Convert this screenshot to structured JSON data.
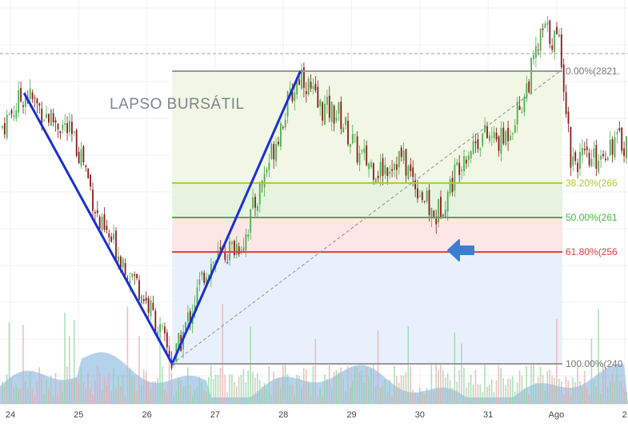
{
  "chart_data": {
    "type": "candlestick",
    "title": "",
    "annotation": "LAPSO BURSÁTIL",
    "x_ticks": [
      "24",
      "25",
      "26",
      "27",
      "28",
      "29",
      "30",
      "31",
      "Ago",
      "2"
    ],
    "fib_levels": [
      {
        "ratio": 0.0,
        "label": "0.00%(2821.",
        "color": "#999999",
        "price": 2821
      },
      {
        "ratio": 0.382,
        "label": "38.20%(266",
        "color": "#a8cc3a",
        "price": 2662
      },
      {
        "ratio": 0.5,
        "label": "50.00%(261",
        "color": "#3cba3c",
        "price": 2613
      },
      {
        "ratio": 0.618,
        "label": "61.80%(256",
        "color": "#e23b3b",
        "price": 2564
      },
      {
        "ratio": 1.0,
        "label": "100.00%(240",
        "color": "#999999",
        "price": 2405
      }
    ],
    "zigzag": [
      {
        "day": 24.2,
        "price": 2790
      },
      {
        "day": 26.37,
        "price": 2405
      },
      {
        "day": 28.25,
        "price": 2821
      }
    ],
    "trend_line": [
      {
        "day": 26.37,
        "price": 2405
      },
      {
        "day": 31.0,
        "price": 2821
      }
    ],
    "price_range": [
      2395,
      2890
    ],
    "dashed_level": 2830,
    "colors": {
      "up": "#4caf50",
      "down": "#8b1a1a",
      "zigzag": "#1a2fd6",
      "arrow": "#3c7fd0",
      "volume_area": "#5a9bd8",
      "fib_zone_top": "#f1f7e4",
      "fib_zone_mid": "#e6f4df",
      "fib_zone_red": "#fde6e6",
      "fib_zone_bottom": "#e8f1fb"
    },
    "arrow_icon": "left-arrow-icon"
  }
}
